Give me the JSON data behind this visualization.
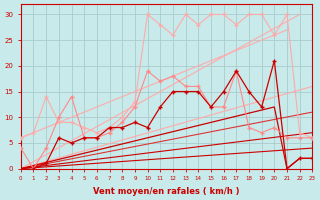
{
  "background_color": "#c8eaea",
  "grid_color": "#aacccc",
  "xlabel": "Vent moyen/en rafales ( km/h )",
  "xlim": [
    0,
    23
  ],
  "ylim": [
    0,
    32
  ],
  "xticks": [
    0,
    1,
    2,
    3,
    4,
    5,
    6,
    7,
    8,
    9,
    10,
    11,
    12,
    13,
    14,
    15,
    16,
    17,
    18,
    19,
    20,
    21,
    22,
    23
  ],
  "yticks": [
    0,
    5,
    10,
    15,
    20,
    25,
    30
  ],
  "series": [
    {
      "x": [
        0,
        22
      ],
      "y": [
        0,
        30
      ],
      "color": "#ffaaaa",
      "linewidth": 0.8,
      "marker": null,
      "markersize": 0,
      "zorder": 2
    },
    {
      "x": [
        0,
        23
      ],
      "y": [
        0,
        16
      ],
      "color": "#ffaaaa",
      "linewidth": 0.8,
      "marker": null,
      "markersize": 0,
      "zorder": 2
    },
    {
      "x": [
        0,
        23
      ],
      "y": [
        0,
        11
      ],
      "color": "#dd3333",
      "linewidth": 0.8,
      "marker": null,
      "markersize": 0,
      "zorder": 2
    },
    {
      "x": [
        0,
        23
      ],
      "y": [
        0,
        7
      ],
      "color": "#cc0000",
      "linewidth": 0.8,
      "marker": null,
      "markersize": 0,
      "zorder": 2
    },
    {
      "x": [
        0,
        23
      ],
      "y": [
        0,
        4
      ],
      "color": "#cc0000",
      "linewidth": 0.8,
      "marker": null,
      "markersize": 0,
      "zorder": 2
    },
    {
      "x": [
        0,
        1,
        2,
        3,
        4,
        5,
        6,
        7,
        8,
        9,
        10,
        11,
        12,
        13,
        14,
        15,
        16,
        17,
        18,
        19,
        20,
        21,
        22,
        23
      ],
      "y": [
        6,
        7,
        14,
        9,
        9,
        8,
        7,
        8,
        10,
        13,
        30,
        28,
        26,
        30,
        28,
        30,
        30,
        28,
        30,
        30,
        26,
        30,
        7,
        6
      ],
      "color": "#ffaaaa",
      "linewidth": 0.8,
      "marker": "+",
      "markersize": 3,
      "zorder": 3
    },
    {
      "x": [
        0,
        1,
        2,
        3,
        4,
        5,
        6,
        7,
        8,
        9,
        10,
        11,
        12,
        13,
        14,
        15,
        16,
        17,
        18,
        19,
        20,
        21,
        22,
        23
      ],
      "y": [
        4,
        0,
        4,
        10,
        14,
        6,
        6,
        7,
        9,
        12,
        19,
        17,
        18,
        16,
        16,
        12,
        12,
        19,
        8,
        7,
        8,
        6,
        6,
        6
      ],
      "color": "#ff8888",
      "linewidth": 0.8,
      "marker": "+",
      "markersize": 3,
      "zorder": 3
    },
    {
      "x": [
        1,
        2,
        3,
        4,
        5,
        6,
        7,
        8,
        9,
        10,
        11,
        12,
        13,
        14,
        15,
        16,
        17,
        18,
        19,
        20,
        21,
        22,
        23
      ],
      "y": [
        0,
        1,
        6,
        5,
        6,
        6,
        8,
        8,
        9,
        8,
        12,
        15,
        15,
        15,
        12,
        15,
        19,
        15,
        12,
        21,
        0,
        2,
        2
      ],
      "color": "#cc0000",
      "linewidth": 0.9,
      "marker": "+",
      "markersize": 3,
      "zorder": 4
    },
    {
      "x": [
        0,
        21
      ],
      "y": [
        6,
        27
      ],
      "color": "#ffaaaa",
      "linewidth": 0.8,
      "marker": null,
      "markersize": 0,
      "zorder": 2
    },
    {
      "x": [
        0,
        20,
        21,
        22,
        23
      ],
      "y": [
        0,
        12,
        0,
        2,
        2
      ],
      "color": "#cc0000",
      "linewidth": 0.9,
      "marker": null,
      "markersize": 0,
      "zorder": 2
    }
  ],
  "axis_color": "#cc0000",
  "tick_color": "#cc0000",
  "label_color": "#cc0000"
}
